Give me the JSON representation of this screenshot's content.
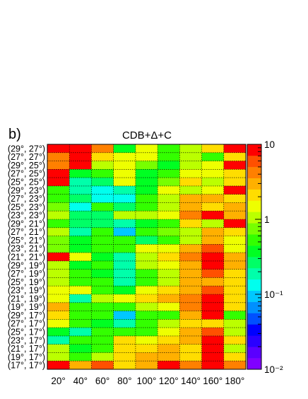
{
  "panel_label": "b)",
  "chart_data": {
    "type": "heatmap",
    "title": "CDB+Δ+C",
    "xlabel": "",
    "ylabel": "",
    "x_categories": [
      "20°",
      "40°",
      "60°",
      "80°",
      "100°",
      "120°",
      "140°",
      "160°",
      "180°"
    ],
    "y_categories": [
      "(29°, 27°)",
      "(27°, 27°)",
      "(29°, 25°)",
      "(27°, 25°)",
      "(25°, 25°)",
      "(29°, 23°)",
      "(27°, 23°)",
      "(25°, 23°)",
      "(23°, 23°)",
      "(29°, 21°)",
      "(27°, 21°)",
      "(25°, 21°)",
      "(23°, 21°)",
      "(21°, 21°)",
      "(29°, 19°)",
      "(27°, 19°)",
      "(25°, 19°)",
      "(23°, 19°)",
      "(21°, 19°)",
      "(19°, 19°)",
      "(29°, 17°)",
      "(27°, 17°)",
      "(25°, 17°)",
      "(23°, 17°)",
      "(21°, 17°)",
      "(19°, 17°)",
      "(17°, 17°)"
    ],
    "color_scale": "log",
    "zlim": [
      0.01,
      10
    ],
    "colorbar_ticks": [
      {
        "value": 10,
        "label": "10"
      },
      {
        "value": 1,
        "label": "1"
      },
      {
        "value": 0.1,
        "label": "10⁻¹"
      },
      {
        "value": 0.01,
        "label": "10⁻²"
      }
    ],
    "grid": true,
    "values": [
      [
        10,
        10,
        5,
        0.4,
        1.5,
        0.5,
        1.2,
        2,
        10
      ],
      [
        5,
        10,
        2,
        1.5,
        1.5,
        0.5,
        1,
        0.5,
        2
      ],
      [
        5,
        10,
        1,
        1.5,
        0.8,
        0.4,
        1,
        1.5,
        10
      ],
      [
        10,
        0.4,
        0.5,
        1.5,
        0.4,
        0.5,
        1.5,
        1.5,
        2
      ],
      [
        8,
        0.2,
        0.3,
        1.5,
        0.4,
        0.8,
        2,
        1,
        2
      ],
      [
        0.5,
        0.2,
        0.15,
        0.2,
        0.4,
        1.5,
        1,
        1.5,
        10
      ],
      [
        0.5,
        0.25,
        0.15,
        0.15,
        0.5,
        1,
        3,
        3,
        2
      ],
      [
        0.8,
        0.15,
        0.5,
        0.3,
        0.5,
        1,
        3,
        2,
        3
      ],
      [
        1,
        0.3,
        0.3,
        1,
        1,
        1.5,
        5,
        8,
        3
      ],
      [
        0.5,
        0.3,
        0.3,
        0.2,
        0.4,
        0.6,
        2,
        1,
        10
      ],
      [
        1,
        0.2,
        0.5,
        0.08,
        0.5,
        0.8,
        1,
        3,
        2
      ],
      [
        0.8,
        0.4,
        0.5,
        0.5,
        0.3,
        0.5,
        1,
        3,
        1.5
      ],
      [
        0.8,
        0.4,
        0.5,
        0.5,
        1.5,
        1.5,
        3,
        6,
        1.5
      ],
      [
        10,
        1.5,
        0.4,
        0.2,
        1,
        2,
        5,
        10,
        3
      ],
      [
        1,
        0.4,
        0.5,
        0.2,
        1,
        1.5,
        3,
        8,
        3
      ],
      [
        1,
        0.5,
        0.4,
        0.2,
        0.5,
        1,
        3,
        6,
        2
      ],
      [
        1,
        0.5,
        0.5,
        0.2,
        0.6,
        1,
        3,
        3,
        2
      ],
      [
        1.5,
        1.5,
        0.5,
        0.4,
        1.5,
        2,
        3,
        6,
        2
      ],
      [
        1.5,
        0.2,
        1,
        1.5,
        2,
        3,
        5,
        8,
        2
      ],
      [
        3,
        0.6,
        0.5,
        0.6,
        1,
        1.5,
        4,
        8,
        2
      ],
      [
        2,
        0.5,
        0.5,
        0.1,
        0.5,
        0.5,
        3,
        8,
        0.5
      ],
      [
        1.5,
        0.5,
        0.4,
        0.2,
        0.5,
        1,
        2,
        2,
        1
      ],
      [
        0.4,
        0.2,
        0.5,
        0.5,
        0.5,
        1.5,
        3,
        6,
        1
      ],
      [
        0.2,
        0.5,
        0.5,
        2,
        1.5,
        2,
        3,
        8,
        2
      ],
      [
        1,
        0.4,
        0.5,
        2,
        2,
        3,
        2,
        8,
        1
      ],
      [
        1,
        0.5,
        1,
        2,
        3,
        3,
        2,
        8,
        2
      ],
      [
        10,
        3,
        6,
        2,
        3,
        8,
        4,
        10,
        4
      ]
    ]
  }
}
